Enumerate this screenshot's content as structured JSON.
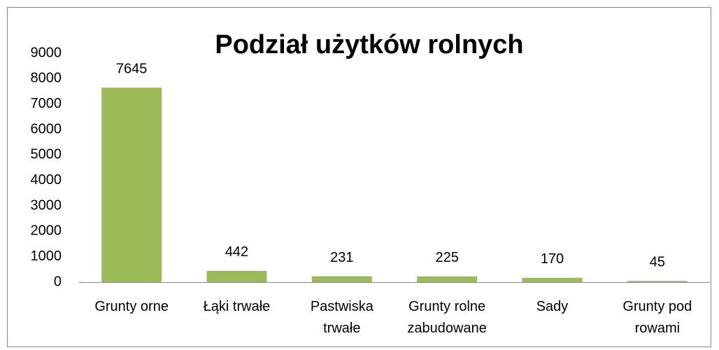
{
  "chart_data": {
    "type": "bar",
    "title": "Podział użytków rolnych",
    "categories": [
      "Grunty orne",
      "Łąki trwałe",
      "Pastwiska trwałe",
      "Grunty rolne zabudowane",
      "Sady",
      "Grunty pod rowami"
    ],
    "values": [
      7645,
      442,
      231,
      225,
      170,
      45
    ],
    "color": "#9bbb59",
    "ylim": [
      0,
      9000
    ],
    "yticks": [
      0,
      1000,
      2000,
      3000,
      4000,
      5000,
      6000,
      7000,
      8000,
      9000
    ],
    "grid": false
  }
}
